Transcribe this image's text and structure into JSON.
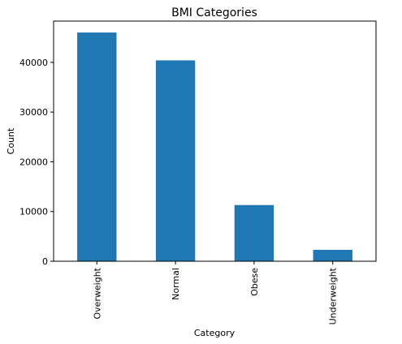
{
  "chart_data": {
    "type": "bar",
    "title": "BMI Categories",
    "xlabel": "Category",
    "ylabel": "Count",
    "categories": [
      "Overweight",
      "Normal",
      "Obese",
      "Underweight"
    ],
    "values": [
      46000,
      40400,
      11300,
      2300
    ],
    "ylim": [
      0,
      48300
    ],
    "yticks": [
      0,
      10000,
      20000,
      30000,
      40000
    ],
    "bar_color": "#1f77b4",
    "grid": false,
    "legend": false
  }
}
